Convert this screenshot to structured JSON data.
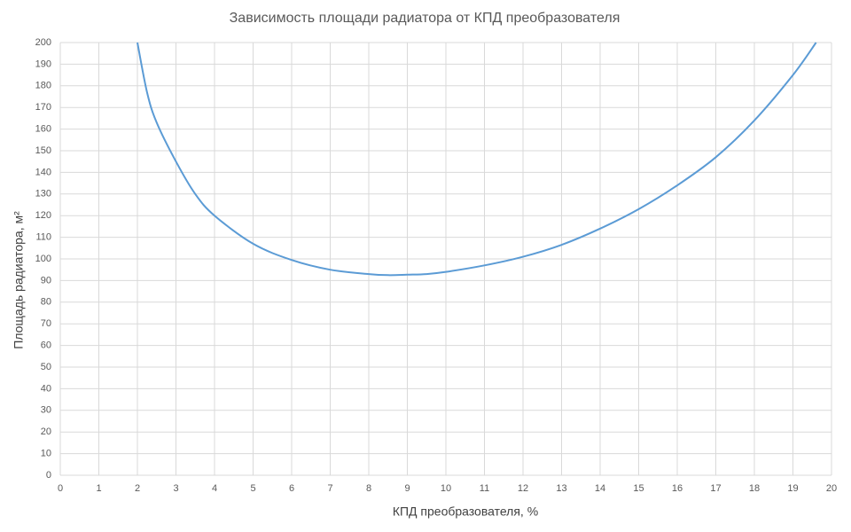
{
  "chart_data": {
    "type": "line",
    "title": "Зависимость площади радиатора от КПД преобразователя",
    "x_label": "КПД преобразователя, %",
    "y_label": "Площадь радиатора, м²",
    "x": [
      2,
      2.25,
      2.5,
      3,
      3.5,
      4,
      5,
      6,
      7,
      8,
      8.5,
      9,
      9.5,
      10,
      11,
      12,
      13,
      14,
      15,
      16,
      17,
      18,
      19,
      19.6
    ],
    "values": [
      200,
      177,
      163,
      145,
      130,
      120,
      107,
      99.5,
      95,
      93,
      92.5,
      92.7,
      93,
      94,
      97,
      101,
      106.5,
      114,
      123,
      134,
      147,
      164,
      185,
      200
    ],
    "color": "#5b9bd5",
    "xlim": [
      0,
      20
    ],
    "xticks": [
      0,
      1,
      2,
      3,
      4,
      5,
      6,
      7,
      8,
      9,
      10,
      11,
      12,
      13,
      14,
      15,
      16,
      17,
      18,
      19,
      20
    ],
    "ylim": [
      0,
      200
    ],
    "yticks": [
      0,
      10,
      20,
      30,
      40,
      50,
      60,
      70,
      80,
      90,
      100,
      110,
      120,
      130,
      140,
      150,
      160,
      170,
      180,
      190,
      200
    ],
    "grid": true
  }
}
